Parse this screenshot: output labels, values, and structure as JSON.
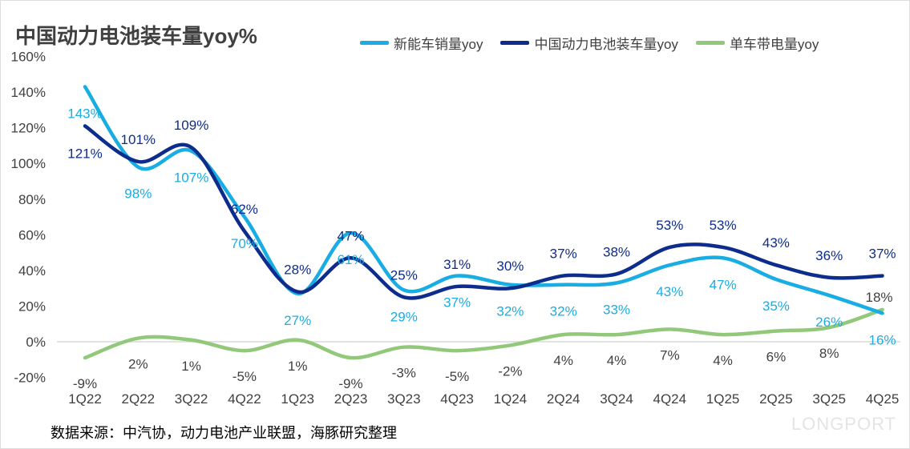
{
  "title": "中国动力电池装车量yoy%",
  "source": "数据来源：中汽协，动力电池产业联盟，海豚研究整理",
  "watermark": "LONGPORT",
  "chart_data": {
    "type": "line",
    "title": "中国动力电池装车量yoy%",
    "categories": [
      "1Q22",
      "2Q22",
      "3Q22",
      "4Q22",
      "1Q23",
      "2Q23",
      "3Q23",
      "4Q23",
      "1Q24",
      "2Q24",
      "3Q24",
      "4Q24",
      "1Q25",
      "2Q25",
      "3Q25",
      "4Q25"
    ],
    "ylim": [
      -20,
      160
    ],
    "yticks": [
      "-20%",
      "0%",
      "20%",
      "40%",
      "60%",
      "80%",
      "100%",
      "120%",
      "140%",
      "160%"
    ],
    "legend_position": "top",
    "series": [
      {
        "name": "新能车销量yoy",
        "color": "#1AADE4",
        "values": [
          143,
          98,
          107,
          70,
          27,
          61,
          29,
          37,
          32,
          32,
          33,
          43,
          47,
          35,
          26,
          16
        ]
      },
      {
        "name": "中国动力电池装车量yoy",
        "color": "#0D2C8C",
        "values": [
          121,
          101,
          109,
          62,
          28,
          47,
          25,
          31,
          30,
          37,
          38,
          53,
          53,
          43,
          36,
          37
        ]
      },
      {
        "name": "单车带电量yoy",
        "color": "#92C87A",
        "values": [
          -9,
          2,
          1,
          -5,
          1,
          -9,
          -3,
          -5,
          -2,
          4,
          4,
          7,
          4,
          6,
          8,
          18
        ]
      }
    ]
  }
}
